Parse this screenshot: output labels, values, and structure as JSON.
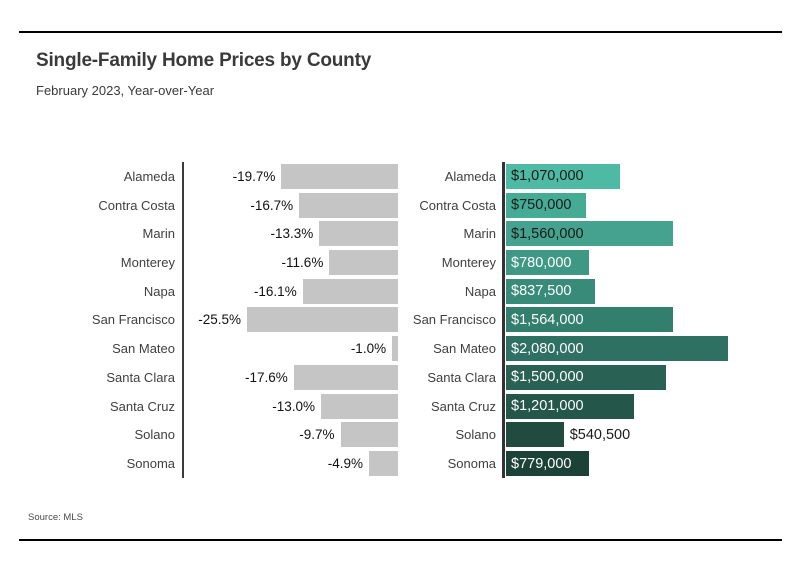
{
  "header": {
    "title": "Single-Family Home Prices by County",
    "subtitle": "February 2023, Year-over-Year"
  },
  "footer": {
    "source": "Source: MLS"
  },
  "chart_data": {
    "type": "bar",
    "orientation": "horizontal",
    "title": "Single-Family Home Prices by County",
    "subtitle": "February 2023, Year-over-Year",
    "categories": [
      "Alameda",
      "Contra Costa",
      "Marin",
      "Monterey",
      "Napa",
      "San Francisco",
      "San Mateo",
      "Santa Clara",
      "Santa Cruz",
      "Solano",
      "Sonoma"
    ],
    "series": [
      {
        "name": "yoy-change-pct",
        "panel": "left",
        "values": [
          -19.7,
          -16.7,
          -13.3,
          -11.6,
          -16.1,
          -25.5,
          -1.0,
          -17.6,
          -13.0,
          -9.7,
          -4.9
        ],
        "labels": [
          "-19.7%",
          "-16.7%",
          "-13.3%",
          "-11.6%",
          "-16.1%",
          "-25.5%",
          "-1.0%",
          "-17.6%",
          "-13.0%",
          "-9.7%",
          "-4.9%"
        ],
        "bar_color": "#c5c5c5",
        "label_color": "#111111",
        "axis": {
          "zero_at": "right",
          "min": -25.5,
          "max": 0
        }
      },
      {
        "name": "median-price-usd",
        "panel": "right",
        "values": [
          1070000,
          750000,
          1560000,
          780000,
          837500,
          1564000,
          2080000,
          1500000,
          1201000,
          540500,
          779000
        ],
        "labels": [
          "$1,070,000",
          "$750,000",
          "$1,560,000",
          "$780,000",
          "$837,500",
          "$1,564,000",
          "$2,080,000",
          "$1,500,000",
          "$1,201,000",
          "$540,500",
          "$779,000"
        ],
        "bar_colors": [
          "#4fbaa3",
          "#46ab94",
          "#44a28e",
          "#3e9884",
          "#398b79",
          "#337f6e",
          "#2e7163",
          "#296254",
          "#24564a",
          "#214b3f",
          "#1c4237"
        ],
        "label_colors": [
          "#1a1a1a",
          "#1a1a1a",
          "#1a1a1a",
          "#ffffff",
          "#ffffff",
          "#ffffff",
          "#ffffff",
          "#ffffff",
          "#ffffff",
          "#1a1a1a",
          "#ffffff"
        ],
        "label_placement": [
          "inside",
          "inside",
          "inside",
          "inside",
          "inside",
          "inside",
          "inside",
          "inside",
          "inside",
          "outside",
          "inside"
        ],
        "axis": {
          "zero_at": "left",
          "min": 0,
          "max": 2080000
        }
      }
    ],
    "legend": "none",
    "grid": false
  }
}
